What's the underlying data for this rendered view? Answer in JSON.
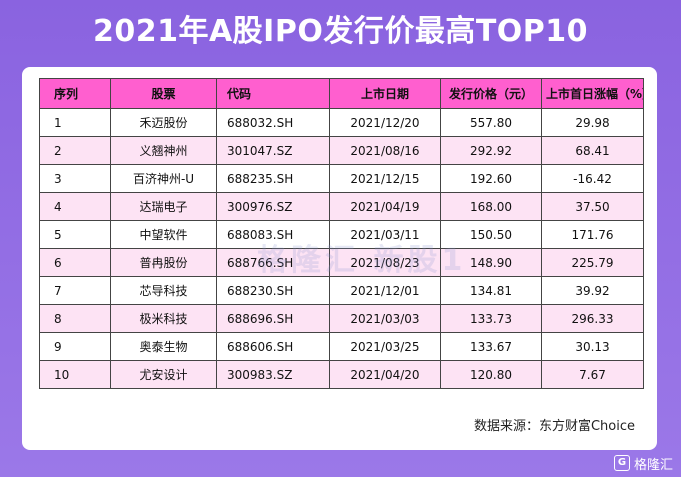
{
  "title": "2021年A股IPO发行价最高TOP10",
  "table": {
    "headers": [
      "序列",
      "股票",
      "代码",
      "上市日期",
      "发行价格（元）",
      "上市首日涨幅（%）"
    ],
    "rows": [
      [
        "1",
        "禾迈股份",
        "688032.SH",
        "2021/12/20",
        "557.80",
        "29.98"
      ],
      [
        "2",
        "义翘神州",
        "301047.SZ",
        "2021/08/16",
        "292.92",
        "68.41"
      ],
      [
        "3",
        "百济神州-U",
        "688235.SH",
        "2021/12/15",
        "192.60",
        "-16.42"
      ],
      [
        "4",
        "达瑞电子",
        "300976.SZ",
        "2021/04/19",
        "168.00",
        "37.50"
      ],
      [
        "5",
        "中望软件",
        "688083.SH",
        "2021/03/11",
        "150.50",
        "171.76"
      ],
      [
        "6",
        "普冉股份",
        "688766.SH",
        "2021/08/23",
        "148.90",
        "225.79"
      ],
      [
        "7",
        "芯导科技",
        "688230.SH",
        "2021/12/01",
        "134.81",
        "39.92"
      ],
      [
        "8",
        "极米科技",
        "688696.SH",
        "2021/03/03",
        "133.73",
        "296.33"
      ],
      [
        "9",
        "奥泰生物",
        "688606.SH",
        "2021/03/25",
        "133.67",
        "30.13"
      ],
      [
        "10",
        "尤安设计",
        "300983.SZ",
        "2021/04/20",
        "120.80",
        "7.67"
      ]
    ]
  },
  "source": "数据来源：东方财富Choice",
  "watermark": "格隆汇 新股1",
  "logo": {
    "text": "格隆汇",
    "icon": "g-logo-icon"
  },
  "colors": {
    "header": "#ff5fcf",
    "stripe": "#fde3f4",
    "background": "#8a63e0"
  }
}
